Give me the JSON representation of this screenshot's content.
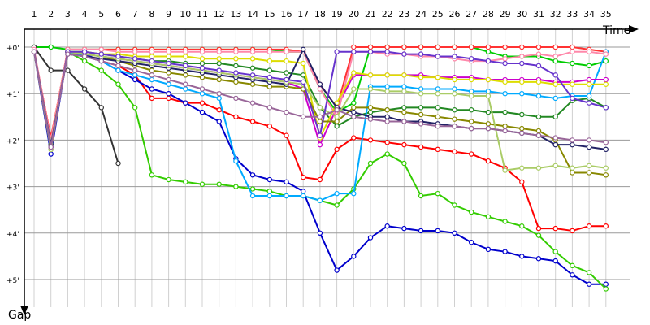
{
  "chart_data": {
    "type": "line",
    "xlabel": "Time",
    "ylabel": "Gap",
    "x": [
      1,
      2,
      3,
      4,
      5,
      6,
      7,
      8,
      9,
      10,
      11,
      12,
      13,
      14,
      15,
      16,
      17,
      18,
      19,
      20,
      21,
      22,
      23,
      24,
      25,
      26,
      27,
      28,
      29,
      30,
      31,
      32,
      33,
      34,
      35
    ],
    "x_tick_labels": [
      "1",
      "2",
      "3",
      "4",
      "5",
      "6",
      "7",
      "8",
      "9",
      "10",
      "11",
      "12",
      "13",
      "14",
      "15",
      "16",
      "17",
      "18",
      "19",
      "20",
      "21",
      "22",
      "23",
      "24",
      "25",
      "26",
      "27",
      "28",
      "29",
      "30",
      "31",
      "32",
      "33",
      "34",
      "35"
    ],
    "y_tick_labels": [
      "+0'",
      "+1'",
      "+2'",
      "+3'",
      "+4'",
      "+5'"
    ],
    "y_tick_values": [
      0,
      1,
      2,
      3,
      4,
      5
    ],
    "ylim": [
      0,
      5.6
    ],
    "grid": true,
    "series": [
      {
        "color": "#ff0000",
        "values": [
          0.1,
          1.95,
          0.1,
          0.2,
          0.3,
          0.4,
          0.6,
          1.1,
          1.1,
          1.2,
          1.2,
          1.35,
          1.5,
          1.6,
          1.7,
          1.9,
          2.8,
          2.85,
          2.2,
          1.95,
          2.0,
          2.05,
          2.1,
          2.15,
          2.2,
          2.25,
          2.3,
          2.45,
          2.6,
          2.9,
          3.9,
          3.9,
          3.95,
          3.85,
          3.85
        ]
      },
      {
        "color": "#00cc00",
        "values": [
          0.0,
          0.0,
          0.05,
          0.05,
          0.05,
          0.05,
          0.05,
          0.05,
          0.05,
          0.05,
          0.05,
          0.05,
          0.05,
          0.05,
          0.05,
          0.1,
          0.1,
          0.9,
          1.4,
          1.2,
          0.0,
          0.0,
          0.0,
          0.0,
          0.0,
          0.0,
          0.0,
          0.1,
          0.2,
          0.2,
          0.2,
          0.3,
          0.35,
          0.4,
          0.3
        ]
      },
      {
        "color": "#ff3333",
        "values": [
          0.1,
          2.0,
          0.05,
          0.05,
          0.05,
          0.05,
          0.05,
          0.05,
          0.05,
          0.05,
          0.05,
          0.05,
          0.05,
          0.05,
          0.05,
          0.05,
          0.1,
          0.8,
          1.3,
          0.0,
          0.0,
          0.0,
          0.0,
          0.0,
          0.0,
          0.0,
          0.0,
          0.0,
          0.0,
          0.0,
          0.0,
          0.0,
          0.0,
          0.05,
          0.1
        ]
      },
      {
        "color": "#228822",
        "values": [
          0.1,
          2.05,
          0.1,
          0.1,
          0.15,
          0.2,
          0.25,
          0.3,
          0.3,
          0.35,
          0.35,
          0.35,
          0.4,
          0.45,
          0.5,
          0.55,
          0.6,
          1.3,
          1.7,
          1.5,
          1.4,
          1.35,
          1.3,
          1.3,
          1.3,
          1.35,
          1.35,
          1.4,
          1.4,
          1.45,
          1.5,
          1.5,
          1.15,
          1.1,
          1.3
        ]
      },
      {
        "color": "#0000cc",
        "values": [
          0.1,
          2.3,
          0.1,
          0.15,
          0.3,
          0.5,
          0.7,
          0.9,
          1.0,
          1.2,
          1.4,
          1.6,
          2.4,
          2.75,
          2.85,
          2.9,
          3.1,
          4.0,
          4.8,
          4.5,
          4.1,
          3.85,
          3.9,
          3.95,
          3.95,
          4.0,
          4.2,
          4.35,
          4.4,
          4.5,
          4.55,
          4.6,
          4.9,
          5.1,
          5.1
        ]
      },
      {
        "color": "#33cc00",
        "values": [
          0.1,
          2.1,
          0.1,
          0.3,
          0.5,
          0.8,
          1.3,
          2.75,
          2.85,
          2.9,
          2.95,
          2.95,
          3.0,
          3.05,
          3.1,
          3.2,
          3.2,
          3.3,
          3.4,
          3.05,
          2.5,
          2.3,
          2.5,
          3.2,
          3.15,
          3.4,
          3.55,
          3.65,
          3.75,
          3.85,
          4.05,
          4.4,
          4.7,
          4.85,
          5.2
        ]
      },
      {
        "color": "#00aaff",
        "values": [
          0.1,
          2.1,
          0.1,
          0.2,
          0.3,
          0.5,
          0.6,
          0.7,
          0.8,
          0.9,
          1.0,
          1.1,
          2.45,
          3.2,
          3.2,
          3.2,
          3.2,
          3.3,
          3.15,
          3.15,
          0.85,
          0.85,
          0.85,
          0.9,
          0.9,
          0.9,
          0.95,
          0.95,
          1.0,
          1.0,
          1.05,
          1.1,
          1.05,
          1.05,
          0.1
        ]
      },
      {
        "color": "#333333",
        "values": [
          0.0,
          0.5,
          0.5,
          0.9,
          1.3,
          2.5,
          null,
          null,
          null,
          null,
          null,
          null,
          null,
          null,
          null,
          null,
          null,
          null,
          null,
          null,
          null,
          null,
          null,
          null,
          null,
          null,
          null,
          null,
          null,
          null,
          null,
          null,
          null,
          null,
          null
        ]
      },
      {
        "color": "#cc00cc",
        "values": [
          0.1,
          2.15,
          0.1,
          0.15,
          0.2,
          0.25,
          0.3,
          0.35,
          0.4,
          0.45,
          0.5,
          0.55,
          0.6,
          0.65,
          0.7,
          0.75,
          0.9,
          2.1,
          1.3,
          0.6,
          0.6,
          0.6,
          0.6,
          0.6,
          0.65,
          0.65,
          0.65,
          0.7,
          0.7,
          0.7,
          0.7,
          0.75,
          0.75,
          0.7,
          0.7
        ]
      },
      {
        "color": "#ff88aa",
        "values": [
          0.05,
          2.0,
          0.05,
          0.05,
          0.05,
          0.1,
          0.1,
          0.1,
          0.1,
          0.1,
          0.1,
          0.1,
          0.1,
          0.1,
          0.1,
          0.1,
          0.1,
          0.9,
          1.5,
          0.1,
          0.1,
          0.15,
          0.15,
          0.2,
          0.2,
          0.25,
          0.3,
          0.3,
          0.25,
          0.2,
          0.15,
          0.2,
          0.1,
          0.1,
          0.15
        ]
      },
      {
        "color": "#dddd00",
        "values": [
          0.1,
          2.1,
          0.1,
          0.1,
          0.15,
          0.15,
          0.2,
          0.2,
          0.2,
          0.2,
          0.25,
          0.25,
          0.25,
          0.25,
          0.3,
          0.3,
          0.35,
          1.95,
          1.2,
          0.55,
          0.6,
          0.6,
          0.6,
          0.65,
          0.65,
          0.7,
          0.7,
          0.7,
          0.75,
          0.75,
          0.75,
          0.8,
          0.8,
          0.8,
          0.8
        ]
      },
      {
        "color": "#888800",
        "values": [
          0.1,
          2.2,
          0.1,
          0.15,
          0.2,
          0.3,
          0.4,
          0.5,
          0.55,
          0.6,
          0.65,
          0.7,
          0.75,
          0.8,
          0.85,
          0.85,
          0.9,
          1.6,
          1.6,
          1.3,
          1.3,
          1.35,
          1.4,
          1.45,
          1.5,
          1.55,
          1.6,
          1.65,
          1.7,
          1.75,
          1.8,
          2.0,
          2.7,
          2.7,
          2.75
        ]
      },
      {
        "color": "#222266",
        "values": [
          0.1,
          2.1,
          0.15,
          0.2,
          0.25,
          0.3,
          0.35,
          0.4,
          0.45,
          0.5,
          0.55,
          0.6,
          0.65,
          0.7,
          0.75,
          0.8,
          0.05,
          0.8,
          1.3,
          1.4,
          1.5,
          1.5,
          1.6,
          1.6,
          1.65,
          1.7,
          1.75,
          1.75,
          1.8,
          1.85,
          1.9,
          2.1,
          2.1,
          2.15,
          2.2
        ]
      },
      {
        "color": "#aacc66",
        "values": [
          0.1,
          2.2,
          0.1,
          0.15,
          0.2,
          0.25,
          0.3,
          0.35,
          0.4,
          0.45,
          0.5,
          0.55,
          0.6,
          0.65,
          0.7,
          0.75,
          0.8,
          1.3,
          1.5,
          0.9,
          0.9,
          0.95,
          0.95,
          1.0,
          1.0,
          1.0,
          1.05,
          1.05,
          2.65,
          2.6,
          2.6,
          2.55,
          2.6,
          2.55,
          2.6
        ]
      },
      {
        "color": "#6633cc",
        "values": [
          0.1,
          2.15,
          0.1,
          0.1,
          0.15,
          0.2,
          0.25,
          0.3,
          0.35,
          0.4,
          0.45,
          0.5,
          0.55,
          0.6,
          0.65,
          0.7,
          0.75,
          1.9,
          0.1,
          0.1,
          0.1,
          0.1,
          0.15,
          0.15,
          0.2,
          0.2,
          0.25,
          0.3,
          0.35,
          0.35,
          0.4,
          0.6,
          1.1,
          1.2,
          1.3
        ]
      },
      {
        "color": "#996699",
        "values": [
          0.1,
          2.15,
          0.15,
          0.2,
          0.3,
          0.4,
          0.5,
          0.6,
          0.7,
          0.8,
          0.9,
          1.0,
          1.1,
          1.2,
          1.3,
          1.4,
          1.5,
          1.5,
          1.35,
          1.5,
          1.55,
          1.6,
          1.6,
          1.65,
          1.7,
          1.7,
          1.75,
          1.75,
          1.8,
          1.85,
          1.9,
          1.95,
          2.0,
          2.0,
          2.05
        ]
      }
    ]
  }
}
